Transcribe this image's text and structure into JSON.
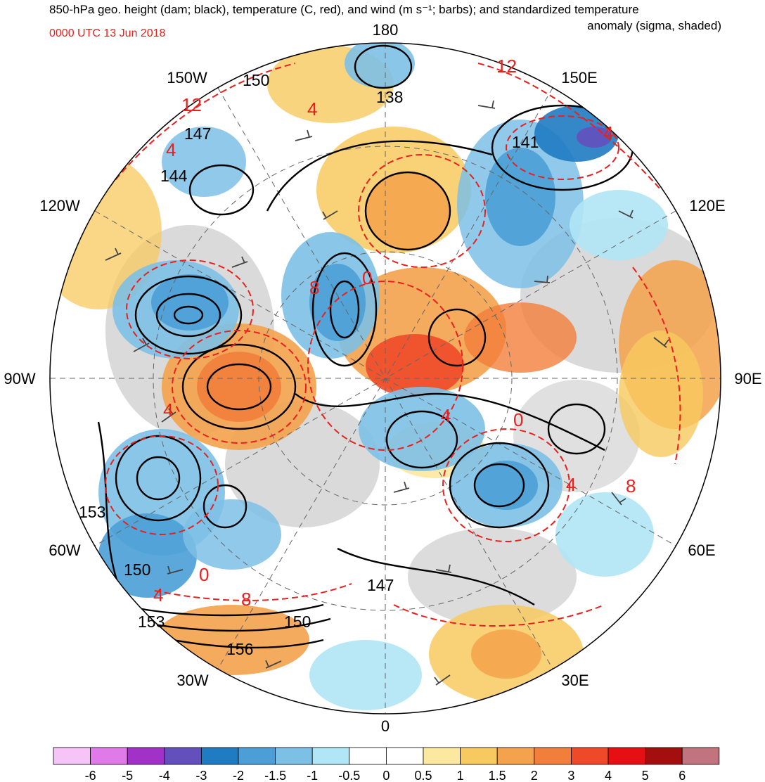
{
  "header": {
    "title_line1": "850-hPa geo. height (dam; black), temperature (C, red), and wind (m s⁻¹; barbs); and standardized temperature",
    "title_line2": "anomaly (sigma, shaded)",
    "valid_time": "0000 UTC 13 Jun 2018"
  },
  "longitude_labels": [
    {
      "text": "180",
      "lon": 180
    },
    {
      "text": "150E",
      "lon": 150
    },
    {
      "text": "120E",
      "lon": 120
    },
    {
      "text": "90E",
      "lon": 90
    },
    {
      "text": "60E",
      "lon": 60
    },
    {
      "text": "30E",
      "lon": 30
    },
    {
      "text": "0",
      "lon": 0
    },
    {
      "text": "30W",
      "lon": -30
    },
    {
      "text": "60W",
      "lon": -60
    },
    {
      "text": "90W",
      "lon": -90
    },
    {
      "text": "120W",
      "lon": -120
    },
    {
      "text": "150W",
      "lon": -150
    }
  ],
  "height_contour_labels": [
    "150",
    "138",
    "141",
    "147",
    "144",
    "153",
    "150",
    "153",
    "150",
    "156",
    "147"
  ],
  "temperature_contour_labels": [
    "12",
    "12",
    "4",
    "4",
    "4",
    "8",
    "0",
    "4",
    "0",
    "4",
    "8",
    "4",
    "0",
    "8",
    "4"
  ],
  "colorbar": {
    "colors": [
      "#f7c4f7",
      "#e07ae8",
      "#a231c8",
      "#6450bd",
      "#1f7bc2",
      "#4b9ed6",
      "#7dc0e6",
      "#b0e6f5",
      "#ffffff",
      "#ffffff",
      "#fde8a0",
      "#f8c95e",
      "#f4a24b",
      "#f27e3b",
      "#ee4a2a",
      "#e50f14",
      "#a30e0e",
      "#c2747e"
    ],
    "labels": [
      "-6",
      "-5",
      "-4",
      "-3",
      "-2",
      "-1.5",
      "-1",
      "-0.5",
      "0",
      "0.5",
      "1",
      "1.5",
      "2",
      "3",
      "4",
      "5",
      "6"
    ]
  }
}
